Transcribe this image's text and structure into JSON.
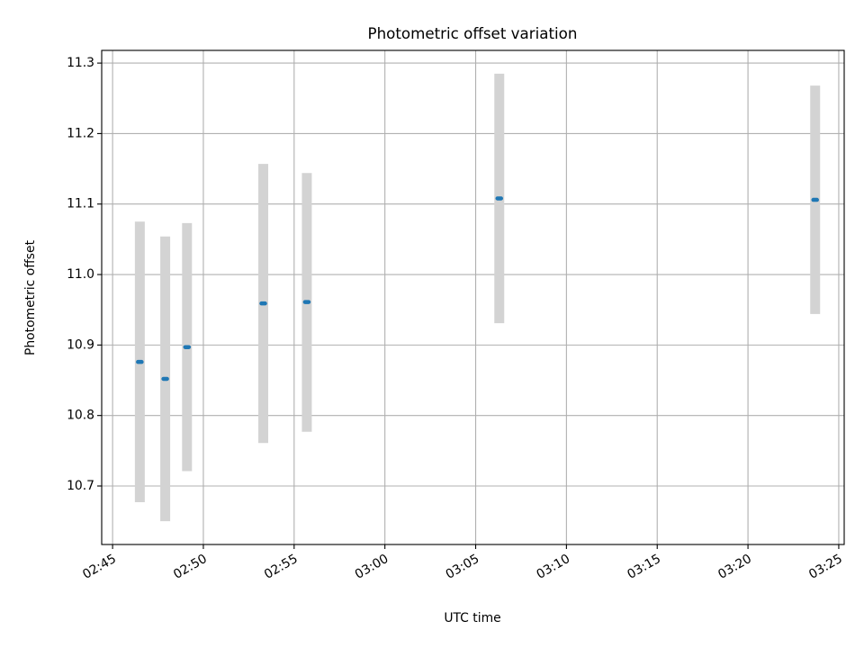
{
  "chart_data": {
    "type": "scatter",
    "title": "Photometric offset variation",
    "xlabel": "UTC time",
    "ylabel": "Photometric offset",
    "x_ticks": [
      "02:45",
      "02:50",
      "02:55",
      "03:00",
      "03:05",
      "03:10",
      "03:15",
      "03:20",
      "03:25"
    ],
    "y_ticks": [
      "10.7",
      "10.8",
      "10.9",
      "11.0",
      "11.1",
      "11.2",
      "11.3"
    ],
    "xlim": [
      "02:44:24",
      "03:25:18"
    ],
    "ylim": [
      10.617,
      11.318
    ],
    "grid": true,
    "colors": {
      "marker": "#1f77b4",
      "errorbar": "#d3d3d3"
    },
    "points": [
      {
        "x": "02:46:24",
        "x_end": "02:46:36",
        "y": 10.876,
        "y_low": 10.677,
        "y_high": 11.075
      },
      {
        "x": "02:47:48",
        "x_end": "02:48:00",
        "y": 10.852,
        "y_low": 10.65,
        "y_high": 11.054
      },
      {
        "x": "02:49:00",
        "x_end": "02:49:12",
        "y": 10.897,
        "y_low": 10.721,
        "y_high": 11.073
      },
      {
        "x": "02:53:12",
        "x_end": "02:53:24",
        "y": 10.959,
        "y_low": 10.761,
        "y_high": 11.157
      },
      {
        "x": "02:55:36",
        "x_end": "02:55:48",
        "y": 10.961,
        "y_low": 10.777,
        "y_high": 11.144
      },
      {
        "x": "03:06:12",
        "x_end": "03:06:24",
        "y": 11.108,
        "y_low": 10.931,
        "y_high": 11.285
      },
      {
        "x": "03:23:36",
        "x_end": "03:23:48",
        "y": 11.106,
        "y_low": 10.944,
        "y_high": 11.268
      }
    ]
  }
}
